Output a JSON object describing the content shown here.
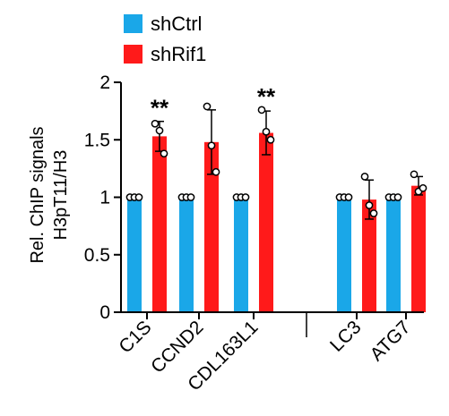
{
  "chart_data": {
    "type": "bar",
    "ylabel_line1": "Rel. ChIP signals",
    "ylabel_line2": "H3pT11/H3",
    "ylim": [
      0,
      2
    ],
    "yticks": [
      0,
      0.5,
      1,
      1.5,
      2
    ],
    "ytick_labels": [
      "0",
      "0.5",
      "1",
      "1.5",
      "2"
    ],
    "legend_position": "top-left",
    "grid": false,
    "categories": [
      "C1S",
      "CCND2",
      "CDL163L1",
      "LC3",
      "ATG7"
    ],
    "series": [
      {
        "name": "shCtrl",
        "color": "#1aa7e8",
        "values": [
          1.0,
          1.0,
          1.0,
          1.0,
          1.0
        ],
        "errors": [
          0.0,
          0.0,
          0.0,
          0.0,
          0.0
        ],
        "points": [
          [
            1.0,
            1.0,
            1.0
          ],
          [
            1.0,
            1.0,
            1.0
          ],
          [
            1.0,
            1.0,
            1.0
          ],
          [
            1.0,
            1.0,
            1.0
          ],
          [
            1.0,
            1.0,
            1.0
          ]
        ]
      },
      {
        "name": "shRif1",
        "color": "#ff1a1a",
        "values": [
          1.53,
          1.48,
          1.56,
          0.98,
          1.1
        ],
        "errors": [
          0.13,
          0.28,
          0.19,
          0.17,
          0.08
        ],
        "points": [
          [
            1.64,
            1.58,
            1.38
          ],
          [
            1.79,
            1.45,
            1.22
          ],
          [
            1.76,
            1.57,
            1.5
          ],
          [
            1.18,
            0.93,
            0.86
          ],
          [
            1.2,
            1.05,
            1.08
          ]
        ]
      }
    ],
    "annotations": [
      {
        "category": "C1S",
        "series": "shRif1",
        "text": "**"
      },
      {
        "category": "CDL163L1",
        "series": "shRif1",
        "text": "**"
      }
    ]
  }
}
